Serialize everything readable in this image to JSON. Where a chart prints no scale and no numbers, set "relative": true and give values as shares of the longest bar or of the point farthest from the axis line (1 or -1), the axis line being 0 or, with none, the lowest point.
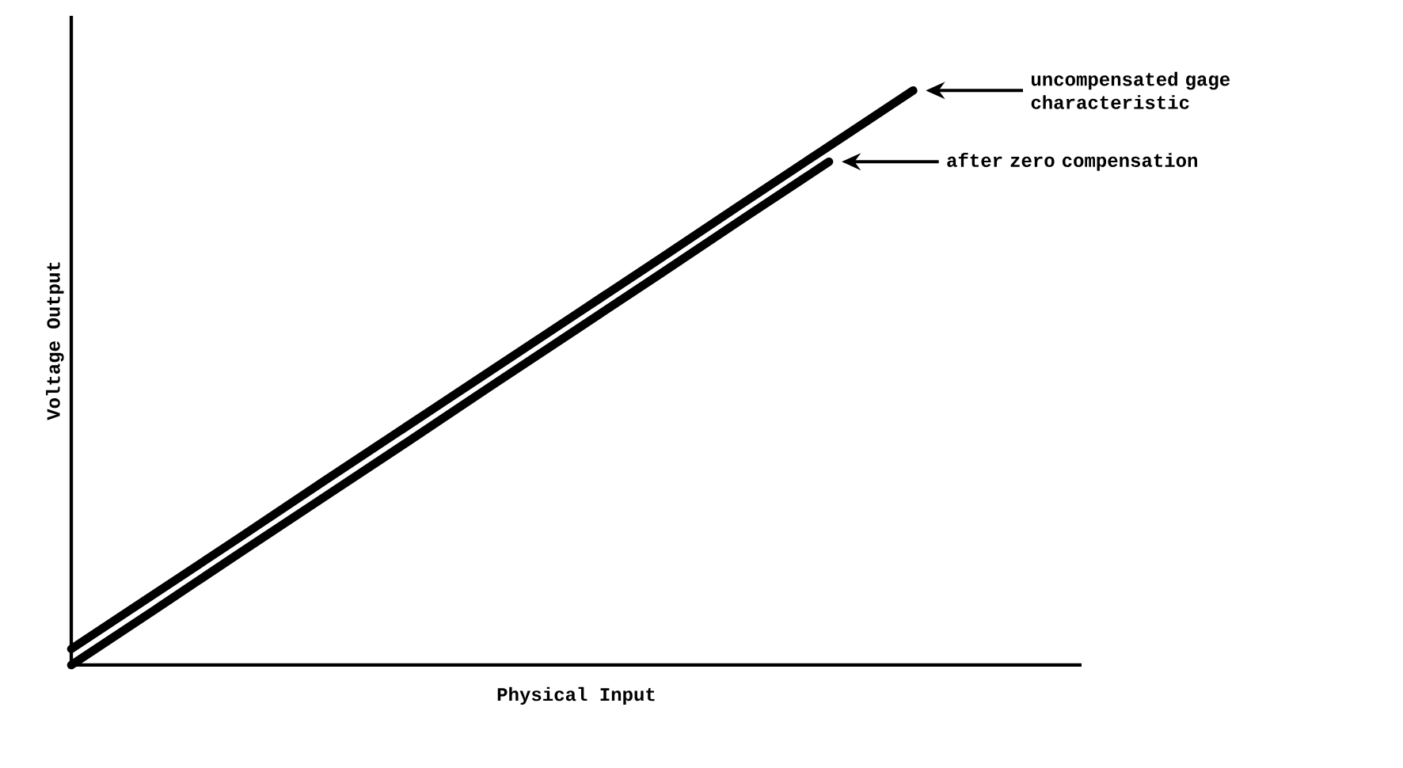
{
  "chart_data": {
    "type": "line",
    "relative": true,
    "xlabel": "Physical Input",
    "ylabel": "Voltage Output",
    "marker": "none",
    "line_style": "solid",
    "categories": [
      null,
      null,
      null,
      null,
      null,
      null,
      null,
      null,
      null,
      null,
      null
    ],
    "series": [
      {
        "color": "#000000",
        "values": [
          0.028,
          0.125,
          0.222,
          0.32,
          0.417,
          0.514,
          0.611,
          0.708,
          0.806,
          0.903,
          1
        ]
      },
      {
        "color": "#000000",
        "values": [
          0,
          0.097,
          0.195,
          0.292,
          0.389,
          0.487,
          0.584,
          0.681,
          0.779,
          0.876,
          null
        ]
      }
    ],
    "annotations": [
      "uncompensated gage characteristic",
      "after zero compensation"
    ]
  }
}
